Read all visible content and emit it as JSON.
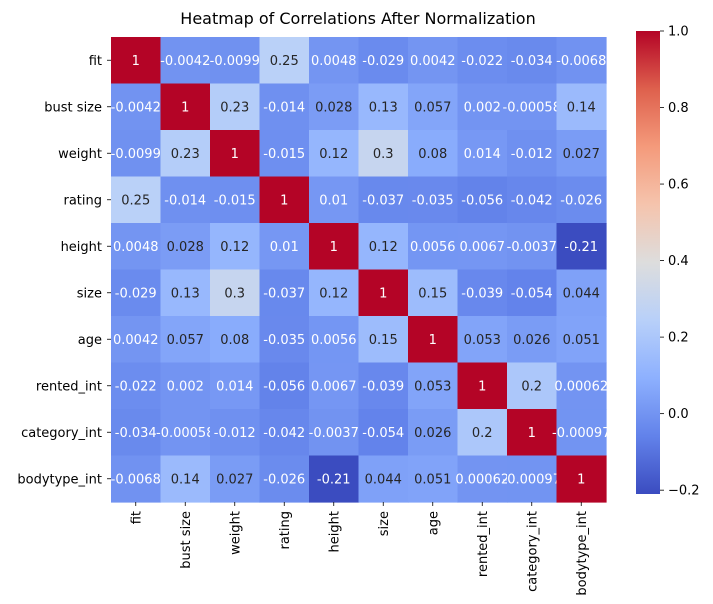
{
  "chart_data": {
    "type": "heatmap",
    "title": "Heatmap of Correlations After Normalization",
    "xlabel": "",
    "ylabel": "",
    "row_labels": [
      "fit",
      "bust size",
      "weight",
      "rating",
      "height",
      "size",
      "age",
      "rented_int",
      "category_int",
      "bodytype_int"
    ],
    "col_labels": [
      "fit",
      "bust size",
      "weight",
      "rating",
      "height",
      "size",
      "age",
      "rented_int",
      "category_int",
      "bodytype_int"
    ],
    "values": [
      [
        1,
        -0.0042,
        -0.0099,
        0.25,
        0.0048,
        -0.029,
        0.0042,
        -0.022,
        -0.034,
        -0.0068
      ],
      [
        -0.0042,
        1,
        0.23,
        -0.014,
        0.028,
        0.13,
        0.057,
        0.002,
        -0.00058,
        0.14
      ],
      [
        -0.0099,
        0.23,
        1,
        -0.015,
        0.12,
        0.3,
        0.08,
        0.014,
        -0.012,
        0.027
      ],
      [
        0.25,
        -0.014,
        -0.015,
        1,
        0.01,
        -0.037,
        -0.035,
        -0.056,
        -0.042,
        -0.026
      ],
      [
        0.0048,
        0.028,
        0.12,
        0.01,
        1,
        0.12,
        0.0056,
        0.0067,
        -0.0037,
        -0.21
      ],
      [
        -0.029,
        0.13,
        0.3,
        -0.037,
        0.12,
        1,
        0.15,
        -0.039,
        -0.054,
        0.044
      ],
      [
        0.0042,
        0.057,
        0.08,
        -0.035,
        0.0056,
        0.15,
        1,
        0.053,
        0.026,
        0.051
      ],
      [
        -0.022,
        0.002,
        0.014,
        -0.056,
        0.0067,
        -0.039,
        0.053,
        1,
        0.2,
        0.00062
      ],
      [
        -0.034,
        -0.00058,
        -0.012,
        -0.042,
        -0.0037,
        -0.054,
        0.026,
        0.2,
        1,
        -0.00097
      ],
      [
        -0.0068,
        0.14,
        0.027,
        -0.026,
        -0.21,
        0.044,
        0.051,
        0.00062,
        -0.00097,
        1
      ]
    ],
    "colormap": "coolwarm",
    "vmin": -0.21,
    "vmax": 1.0,
    "colorbar_ticks": [
      1.0,
      0.8,
      0.6,
      0.4,
      0.2,
      0.0,
      -0.2
    ],
    "colorbar_tick_labels": [
      "1.0",
      "0.8",
      "0.6",
      "0.4",
      "0.2",
      "0.0",
      "−0.2"
    ],
    "legend": "colorbar-right",
    "grid": false
  }
}
